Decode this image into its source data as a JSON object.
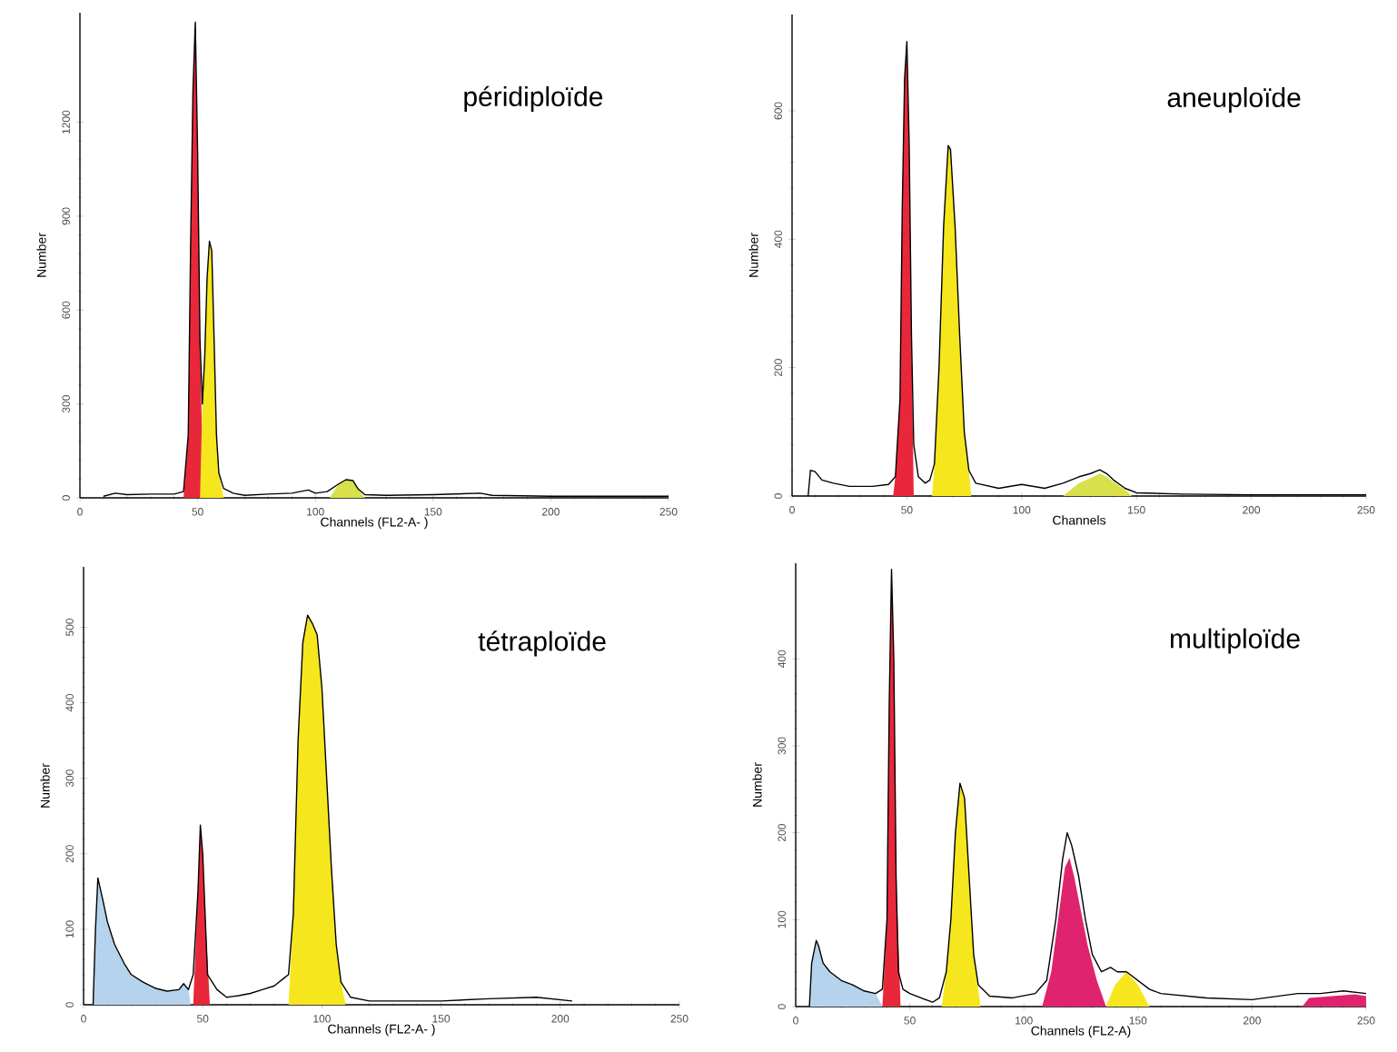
{
  "chart_data": [
    {
      "type": "line",
      "title": "péridiploïde",
      "xlabel": "Channels (FL2-A- )",
      "ylabel": "Number",
      "xlim": [
        0,
        250
      ],
      "xticks": [
        0,
        50,
        100,
        150,
        200,
        250
      ],
      "ylim": [
        0,
        1550
      ],
      "yticks": [
        0,
        300,
        600,
        900,
        1200
      ],
      "series": [
        {
          "type": "area",
          "color": "#e8283a",
          "x": [
            44,
            46,
            47,
            48,
            49,
            50,
            51,
            52,
            53
          ],
          "values": [
            0,
            200,
            800,
            1300,
            1520,
            1100,
            500,
            150,
            0
          ]
        },
        {
          "type": "area",
          "color": "#f5e61e",
          "x": [
            51,
            52,
            53,
            54,
            55,
            56,
            57,
            58,
            59,
            61
          ],
          "values": [
            0,
            300,
            450,
            700,
            820,
            790,
            500,
            200,
            80,
            0
          ]
        },
        {
          "type": "area",
          "color": "#d8e04a",
          "x": [
            106,
            110,
            113,
            116,
            118,
            121
          ],
          "values": [
            0,
            45,
            58,
            55,
            30,
            0
          ]
        },
        {
          "color": "#000000",
          "x": [
            10,
            15,
            20,
            30,
            40,
            44,
            46,
            47,
            48,
            49,
            50,
            51,
            52,
            53,
            54,
            55,
            56,
            57,
            58,
            59,
            61,
            65,
            70,
            80,
            90,
            97,
            100,
            105,
            110,
            113,
            116,
            118,
            121,
            130,
            150,
            170,
            175,
            200,
            250
          ],
          "values": [
            5,
            15,
            10,
            12,
            12,
            20,
            200,
            800,
            1300,
            1520,
            1100,
            500,
            300,
            450,
            700,
            820,
            790,
            500,
            200,
            80,
            30,
            15,
            8,
            12,
            15,
            25,
            15,
            20,
            45,
            58,
            55,
            30,
            10,
            8,
            10,
            15,
            8,
            5,
            5
          ]
        }
      ]
    },
    {
      "type": "line",
      "title": "aneuploïde",
      "xlabel": "Channels",
      "ylabel": "Number",
      "xlim": [
        0,
        250
      ],
      "xticks": [
        0,
        50,
        100,
        150,
        200,
        250
      ],
      "ylim": [
        0,
        750
      ],
      "yticks": [
        0,
        200,
        400,
        600
      ],
      "series": [
        {
          "type": "area",
          "color": "#e8283a",
          "x": [
            44,
            45,
            47,
            48,
            49,
            50,
            51,
            52,
            53
          ],
          "values": [
            0,
            30,
            150,
            450,
            650,
            708,
            550,
            250,
            0
          ]
        },
        {
          "type": "area",
          "color": "#f5e61e",
          "x": [
            61,
            62,
            64,
            66,
            68,
            69,
            71,
            73,
            75,
            77,
            78
          ],
          "values": [
            0,
            50,
            200,
            420,
            546,
            540,
            420,
            250,
            100,
            40,
            0
          ]
        },
        {
          "type": "area",
          "color": "#d8e04a",
          "x": [
            118,
            125,
            130,
            134,
            137,
            140,
            145,
            148
          ],
          "values": [
            0,
            20,
            28,
            35,
            30,
            22,
            10,
            0
          ]
        },
        {
          "color": "#000000",
          "x": [
            7,
            8,
            10,
            13,
            18,
            25,
            35,
            42,
            45,
            47,
            48,
            49,
            50,
            51,
            52,
            53,
            55,
            58,
            60,
            62,
            64,
            66,
            68,
            69,
            71,
            73,
            75,
            77,
            80,
            90,
            100,
            110,
            118,
            125,
            130,
            134,
            137,
            140,
            145,
            150,
            170,
            200,
            250
          ],
          "values": [
            0,
            40,
            38,
            25,
            20,
            15,
            15,
            18,
            30,
            150,
            450,
            650,
            708,
            550,
            250,
            80,
            30,
            20,
            25,
            50,
            200,
            420,
            546,
            540,
            420,
            250,
            100,
            40,
            20,
            12,
            18,
            12,
            20,
            30,
            35,
            41,
            35,
            25,
            12,
            5,
            3,
            2,
            2
          ]
        }
      ]
    },
    {
      "type": "line",
      "title": "tétraploïde",
      "xlabel": "Channels (FL2-A- )",
      "ylabel": "Number",
      "xlim": [
        0,
        250
      ],
      "xticks": [
        0,
        50,
        100,
        150,
        200,
        250
      ],
      "ylim": [
        0,
        580
      ],
      "yticks": [
        0,
        100,
        200,
        300,
        400,
        500
      ],
      "series": [
        {
          "type": "area",
          "color": "#b5d3ec",
          "x": [
            4,
            5,
            6,
            8,
            10,
            13,
            17,
            20,
            25,
            30,
            35,
            40,
            42,
            44,
            45
          ],
          "values": [
            0,
            100,
            168,
            140,
            110,
            80,
            55,
            40,
            30,
            22,
            18,
            20,
            28,
            20,
            0
          ]
        },
        {
          "type": "area",
          "color": "#e8283a",
          "x": [
            46,
            48,
            49,
            50,
            51,
            53
          ],
          "values": [
            0,
            150,
            238,
            200,
            120,
            0
          ]
        },
        {
          "type": "area",
          "color": "#f5e61e",
          "x": [
            86,
            88,
            90,
            92,
            94,
            96,
            98,
            100,
            102,
            104,
            106,
            108,
            110
          ],
          "values": [
            0,
            120,
            350,
            480,
            516,
            505,
            490,
            420,
            300,
            180,
            80,
            30,
            0
          ]
        },
        {
          "color": "#000000",
          "x": [
            4,
            5,
            6,
            8,
            10,
            13,
            17,
            20,
            25,
            30,
            35,
            40,
            42,
            44,
            46,
            48,
            49,
            50,
            51,
            52,
            54,
            56,
            60,
            65,
            70,
            75,
            80,
            84,
            86,
            88,
            90,
            92,
            94,
            96,
            98,
            100,
            102,
            104,
            106,
            108,
            112,
            120,
            150,
            170,
            190,
            205
          ],
          "values": [
            0,
            100,
            168,
            140,
            110,
            80,
            55,
            40,
            30,
            22,
            18,
            20,
            28,
            20,
            40,
            150,
            238,
            200,
            120,
            40,
            30,
            20,
            10,
            12,
            15,
            20,
            25,
            35,
            40,
            120,
            350,
            480,
            516,
            505,
            490,
            420,
            300,
            180,
            80,
            30,
            10,
            5,
            5,
            8,
            10,
            5
          ]
        }
      ]
    },
    {
      "type": "line",
      "title": "multiploïde",
      "xlabel": "Channels (FL2-A)",
      "ylabel": "Number",
      "xlim": [
        0,
        250
      ],
      "xticks": [
        0,
        50,
        100,
        150,
        200,
        250
      ],
      "ylim": [
        0,
        510
      ],
      "yticks": [
        0,
        100,
        200,
        300,
        400
      ],
      "series": [
        {
          "type": "area",
          "color": "#b5d3ec",
          "x": [
            6,
            7,
            9,
            10,
            12,
            15,
            20,
            25,
            30,
            35,
            38
          ],
          "values": [
            0,
            50,
            76,
            70,
            50,
            40,
            30,
            25,
            18,
            15,
            0
          ]
        },
        {
          "type": "area",
          "color": "#e8283a",
          "x": [
            38,
            40,
            41,
            42,
            43,
            44,
            46
          ],
          "values": [
            0,
            100,
            350,
            503,
            400,
            150,
            0
          ]
        },
        {
          "type": "area",
          "color": "#f5e61e",
          "x": [
            64,
            66,
            68,
            70,
            72,
            74,
            76,
            78,
            81
          ],
          "values": [
            0,
            40,
            100,
            200,
            257,
            240,
            150,
            60,
            0
          ]
        },
        {
          "type": "area",
          "color": "#e0236f",
          "x": [
            108,
            112,
            115,
            118,
            120,
            122,
            125,
            128,
            132,
            136
          ],
          "values": [
            0,
            40,
            100,
            160,
            171,
            150,
            110,
            70,
            30,
            0
          ]
        },
        {
          "type": "area",
          "color": "#f5e61e",
          "x": [
            136,
            140,
            145,
            150,
            155
          ],
          "values": [
            0,
            25,
            40,
            25,
            0
          ]
        },
        {
          "type": "area",
          "color": "#e0236f",
          "x": [
            222,
            225,
            235,
            245,
            250
          ],
          "values": [
            0,
            10,
            12,
            14,
            12
          ]
        },
        {
          "color": "#000000",
          "x": [
            6,
            7,
            9,
            10,
            12,
            15,
            20,
            25,
            30,
            35,
            38,
            40,
            41,
            42,
            43,
            44,
            45,
            47,
            50,
            55,
            60,
            63,
            66,
            68,
            70,
            72,
            74,
            76,
            78,
            80,
            85,
            95,
            105,
            110,
            114,
            117,
            119,
            121,
            124,
            127,
            130,
            134,
            138,
            141,
            145,
            150,
            155,
            160,
            180,
            200,
            220,
            230,
            240,
            250
          ],
          "values": [
            0,
            50,
            76,
            70,
            50,
            40,
            30,
            25,
            18,
            15,
            20,
            100,
            350,
            503,
            400,
            150,
            40,
            20,
            15,
            10,
            5,
            10,
            40,
            100,
            200,
            257,
            240,
            150,
            60,
            25,
            12,
            10,
            15,
            30,
            100,
            170,
            200,
            185,
            150,
            100,
            60,
            40,
            45,
            40,
            40,
            30,
            20,
            15,
            10,
            8,
            15,
            15,
            18,
            15
          ]
        }
      ]
    }
  ]
}
